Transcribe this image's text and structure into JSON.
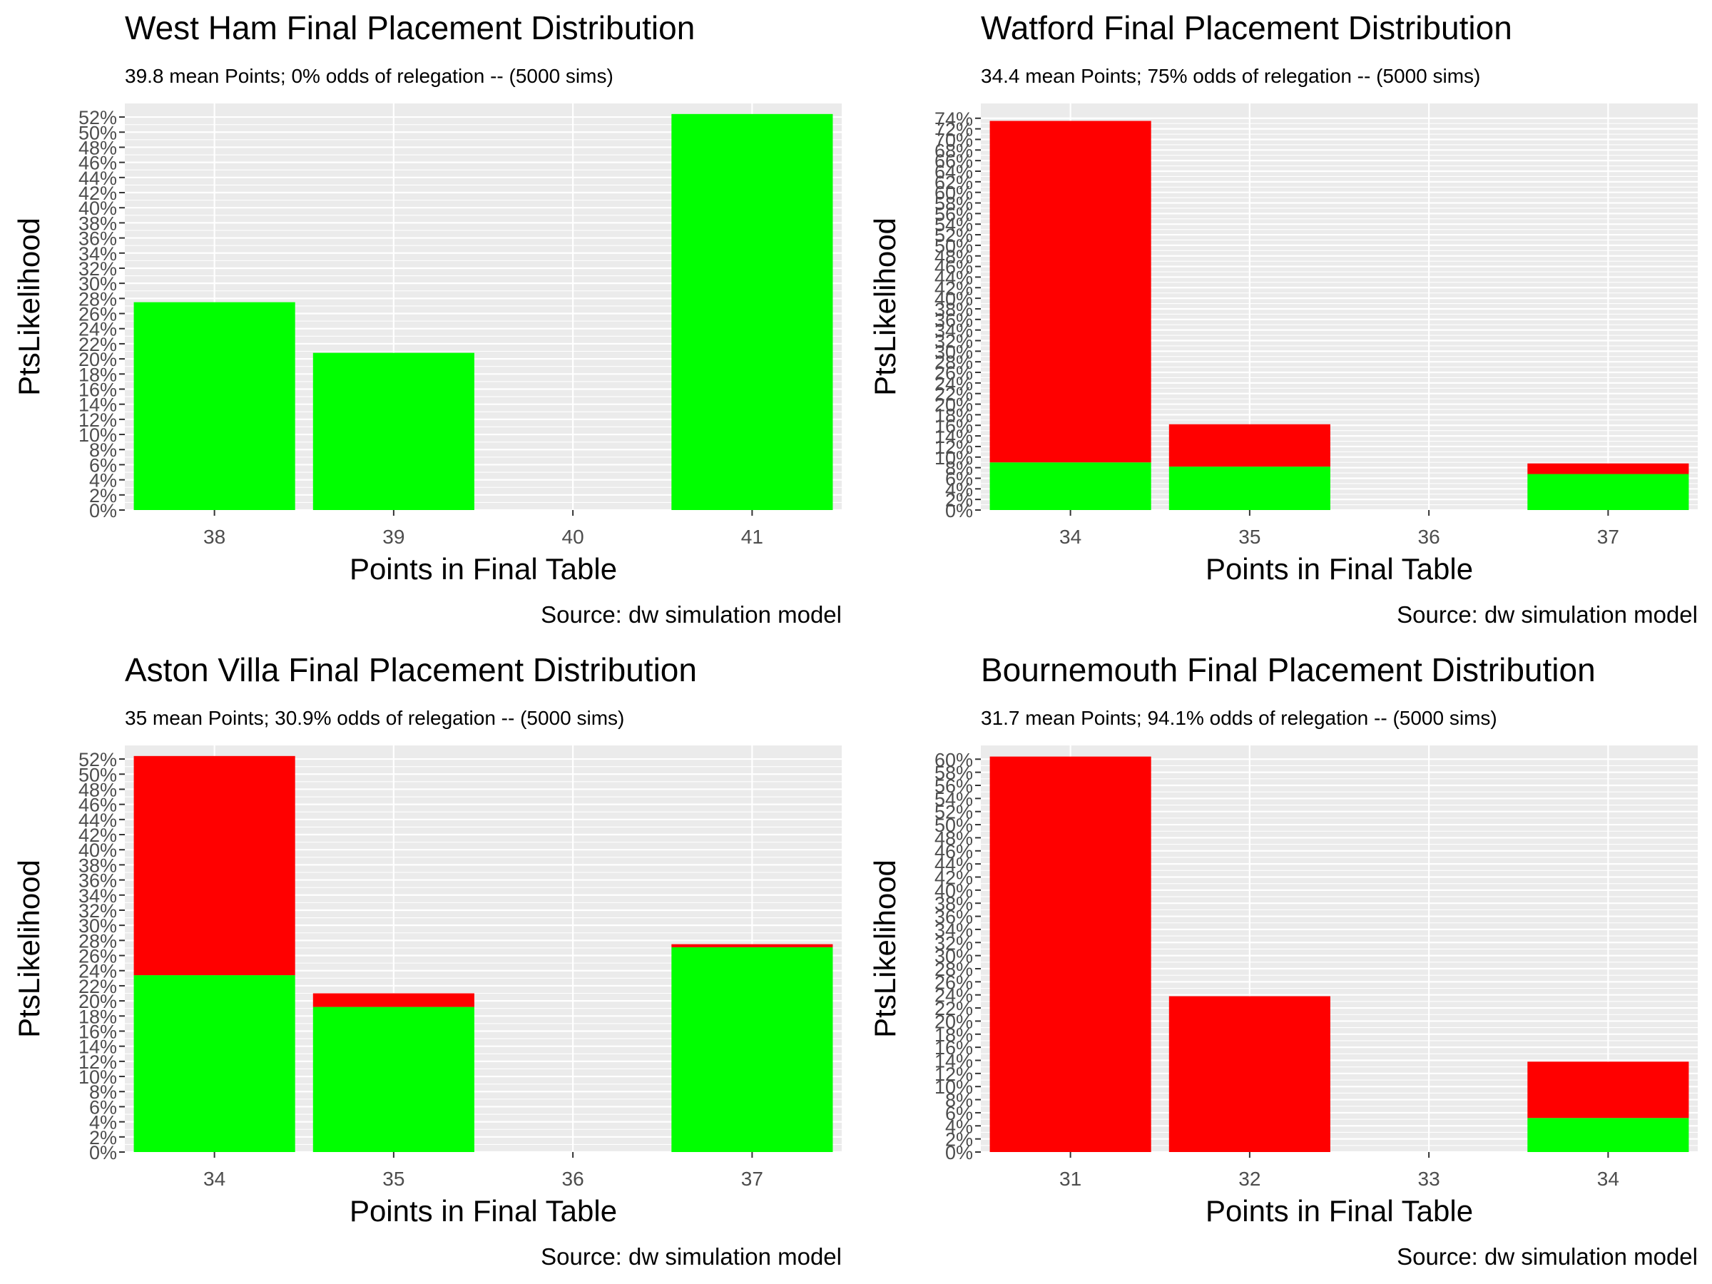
{
  "colors": {
    "panel_bg": "#EBEBEB",
    "grid": "#FFFFFF",
    "relegated": "#FF0000",
    "safe": "#00FF00",
    "tick": "#4D4D4D"
  },
  "chart_data": [
    {
      "type": "bar",
      "stacked": true,
      "title": "West Ham Final Placement Distribution",
      "subtitle": "39.8 mean Points; 0% odds of relegation -- (5000 sims)",
      "xlabel": "Points in Final Table",
      "ylabel": "PtsLikelihood",
      "caption": "Source:  dw simulation model",
      "categories": [
        "38",
        "39",
        "40",
        "41"
      ],
      "y_ticks": [
        "0%",
        "2%",
        "4%",
        "6%",
        "8%",
        "10%",
        "12%",
        "14%",
        "16%",
        "18%",
        "20%",
        "22%",
        "24%",
        "26%",
        "28%",
        "30%",
        "32%",
        "34%",
        "36%",
        "38%",
        "40%",
        "42%",
        "44%",
        "46%",
        "48%",
        "50%",
        "52%"
      ],
      "ylim": [
        0,
        53.8
      ],
      "series": [
        {
          "key": "relegated",
          "values": [
            0,
            0,
            0,
            0
          ]
        },
        {
          "key": "safe",
          "values": [
            27.5,
            20.8,
            0,
            52.4
          ]
        }
      ],
      "legend": "none",
      "grid": true
    },
    {
      "type": "bar",
      "stacked": true,
      "title": "Watford Final Placement Distribution",
      "subtitle": "34.4 mean Points; 75% odds of relegation -- (5000 sims)",
      "xlabel": "Points in Final Table",
      "ylabel": "PtsLikelihood",
      "caption": "Source:  dw simulation model",
      "categories": [
        "34",
        "35",
        "36",
        "37"
      ],
      "y_ticks": [
        "0%",
        "2%",
        "4%",
        "6%",
        "8%",
        "10%",
        "12%",
        "14%",
        "16%",
        "18%",
        "20%",
        "22%",
        "24%",
        "26%",
        "28%",
        "30%",
        "32%",
        "34%",
        "36%",
        "38%",
        "40%",
        "42%",
        "44%",
        "46%",
        "48%",
        "50%",
        "52%",
        "54%",
        "56%",
        "58%",
        "60%",
        "62%",
        "64%",
        "66%",
        "68%",
        "70%",
        "72%",
        "74%"
      ],
      "ylim": [
        0,
        76.8
      ],
      "series": [
        {
          "key": "relegated",
          "values": [
            64.5,
            8.0,
            0,
            2.0
          ]
        },
        {
          "key": "safe",
          "values": [
            9.0,
            8.2,
            0,
            6.8
          ]
        }
      ],
      "legend": "none",
      "grid": true
    },
    {
      "type": "bar",
      "stacked": true,
      "title": "Aston Villa Final Placement Distribution",
      "subtitle": "35 mean Points; 30.9% odds of relegation -- (5000 sims)",
      "xlabel": "Points in Final Table",
      "ylabel": "PtsLikelihood",
      "caption": "Source:  dw simulation model",
      "categories": [
        "34",
        "35",
        "36",
        "37"
      ],
      "y_ticks": [
        "0%",
        "2%",
        "4%",
        "6%",
        "8%",
        "10%",
        "12%",
        "14%",
        "16%",
        "18%",
        "20%",
        "22%",
        "24%",
        "26%",
        "28%",
        "30%",
        "32%",
        "34%",
        "36%",
        "38%",
        "40%",
        "42%",
        "44%",
        "46%",
        "48%",
        "50%",
        "52%"
      ],
      "ylim": [
        0,
        53.8
      ],
      "series": [
        {
          "key": "relegated",
          "values": [
            29.0,
            1.8,
            0,
            0.4
          ]
        },
        {
          "key": "safe",
          "values": [
            23.4,
            19.2,
            0,
            27.1
          ]
        }
      ],
      "legend": "none",
      "grid": true
    },
    {
      "type": "bar",
      "stacked": true,
      "title": "Bournemouth Final Placement Distribution",
      "subtitle": "31.7 mean Points; 94.1% odds of relegation -- (5000 sims)",
      "xlabel": "Points in Final Table",
      "ylabel": "PtsLikelihood",
      "caption": "Source:  dw simulation model",
      "categories": [
        "31",
        "32",
        "33",
        "34"
      ],
      "y_ticks": [
        "0%",
        "2%",
        "4%",
        "6%",
        "8%",
        "10%",
        "12%",
        "14%",
        "16%",
        "18%",
        "20%",
        "22%",
        "24%",
        "26%",
        "28%",
        "30%",
        "32%",
        "34%",
        "36%",
        "38%",
        "40%",
        "42%",
        "44%",
        "46%",
        "48%",
        "50%",
        "52%",
        "54%",
        "56%",
        "58%",
        "60%"
      ],
      "ylim": [
        0,
        62.1
      ],
      "series": [
        {
          "key": "relegated",
          "values": [
            60.4,
            23.8,
            0,
            8.6
          ]
        },
        {
          "key": "safe",
          "values": [
            0,
            0,
            0,
            5.2
          ]
        }
      ],
      "legend": "none",
      "grid": true
    }
  ]
}
